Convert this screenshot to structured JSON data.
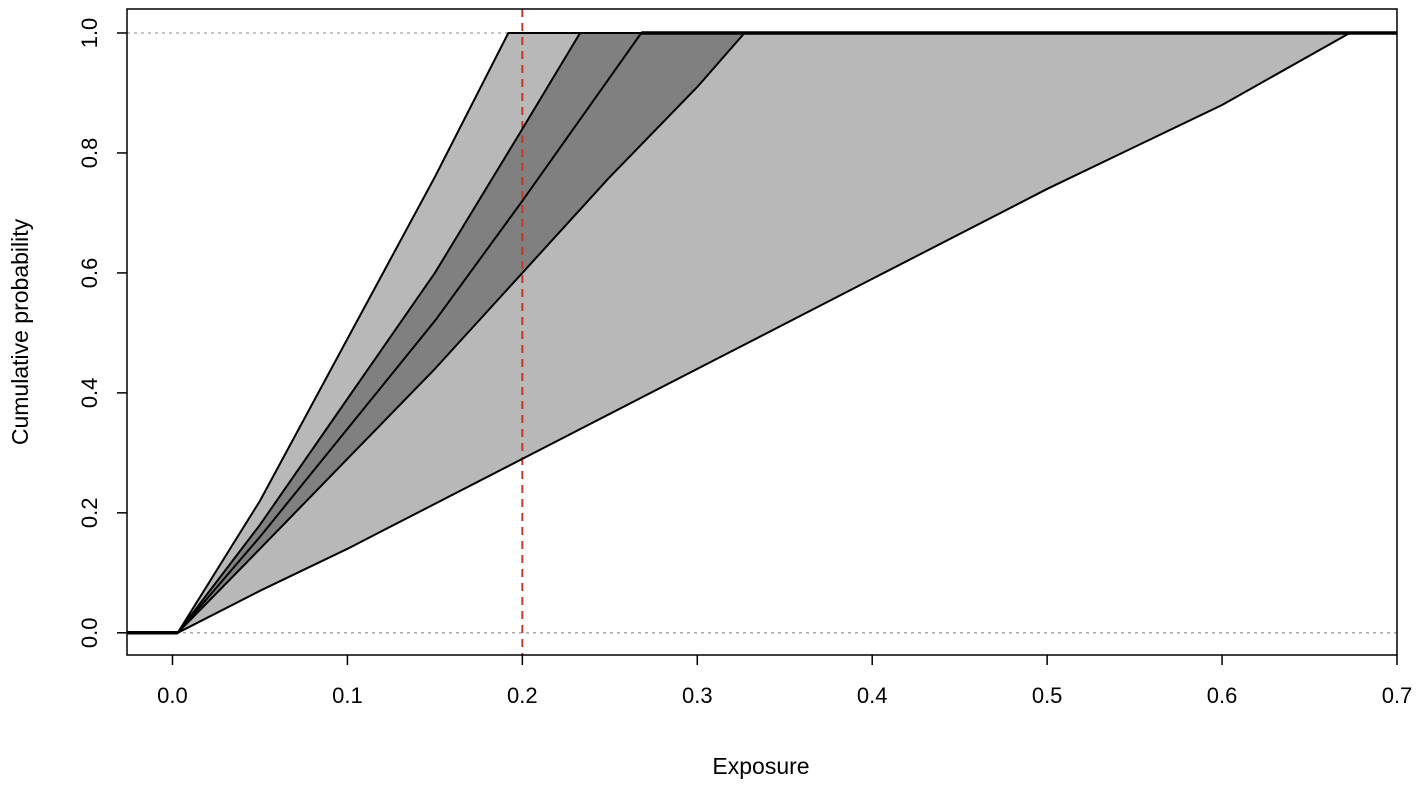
{
  "chart_data": {
    "type": "area",
    "title": "",
    "xlabel": "Exposure",
    "ylabel": "Cumulative probability",
    "xlim": [
      -0.026,
      0.7
    ],
    "ylim": [
      -0.037,
      1.04
    ],
    "xticks": [
      0.0,
      0.1,
      0.2,
      0.3,
      0.4,
      0.5,
      0.6,
      0.7
    ],
    "xtick_labels": [
      "0.0",
      "0.1",
      "0.2",
      "0.3",
      "0.4",
      "0.5",
      "0.6",
      "0.7"
    ],
    "yticks": [
      0.0,
      0.2,
      0.4,
      0.6,
      0.8,
      1.0
    ],
    "ytick_labels": [
      "0.0",
      "0.2",
      "0.4",
      "0.6",
      "0.8",
      "1.0"
    ],
    "grid": false,
    "reference_lines": {
      "horizontal_dotted": [
        0.0,
        1.0
      ],
      "vertical_dashed_x": 0.2,
      "vertical_dashed_color": "#c0392b"
    },
    "bands": [
      {
        "role": "outer-band",
        "fill": "#b8b8b8",
        "lower": "bound-outer-right",
        "upper": "bound-outer-left"
      },
      {
        "role": "inner-band",
        "fill": "#808080",
        "lower": "bound-inner-right",
        "upper": "bound-inner-left"
      }
    ],
    "series": [
      {
        "id": "bound-outer-left",
        "x": [
          -0.026,
          0.003,
          0.05,
          0.1,
          0.15,
          0.192,
          0.7
        ],
        "y": [
          0.0,
          0.0,
          0.22,
          0.49,
          0.76,
          1.0,
          1.0
        ]
      },
      {
        "id": "bound-inner-left",
        "x": [
          -0.026,
          0.003,
          0.05,
          0.1,
          0.15,
          0.2,
          0.233,
          0.7
        ],
        "y": [
          0.0,
          0.0,
          0.18,
          0.39,
          0.6,
          0.84,
          1.0,
          1.0
        ]
      },
      {
        "id": "median",
        "x": [
          -0.026,
          0.003,
          0.05,
          0.1,
          0.15,
          0.2,
          0.268,
          0.7
        ],
        "y": [
          0.0,
          0.0,
          0.16,
          0.34,
          0.52,
          0.72,
          1.0,
          1.0
        ]
      },
      {
        "id": "bound-inner-right",
        "x": [
          -0.026,
          0.003,
          0.05,
          0.1,
          0.15,
          0.2,
          0.25,
          0.3,
          0.327,
          0.7
        ],
        "y": [
          0.0,
          0.0,
          0.14,
          0.29,
          0.44,
          0.6,
          0.76,
          0.91,
          1.0,
          1.0
        ]
      },
      {
        "id": "bound-outer-right",
        "x": [
          -0.026,
          0.003,
          0.05,
          0.1,
          0.2,
          0.3,
          0.4,
          0.5,
          0.6,
          0.673,
          0.7
        ],
        "y": [
          0.0,
          0.0,
          0.07,
          0.14,
          0.29,
          0.44,
          0.59,
          0.74,
          0.88,
          1.0,
          1.0
        ]
      }
    ]
  },
  "colors": {
    "axis": "#000000",
    "line": "#000000",
    "dotted_ref": "#a0a0a0",
    "outer_band": "#b8b8b8",
    "inner_band": "#808080"
  }
}
